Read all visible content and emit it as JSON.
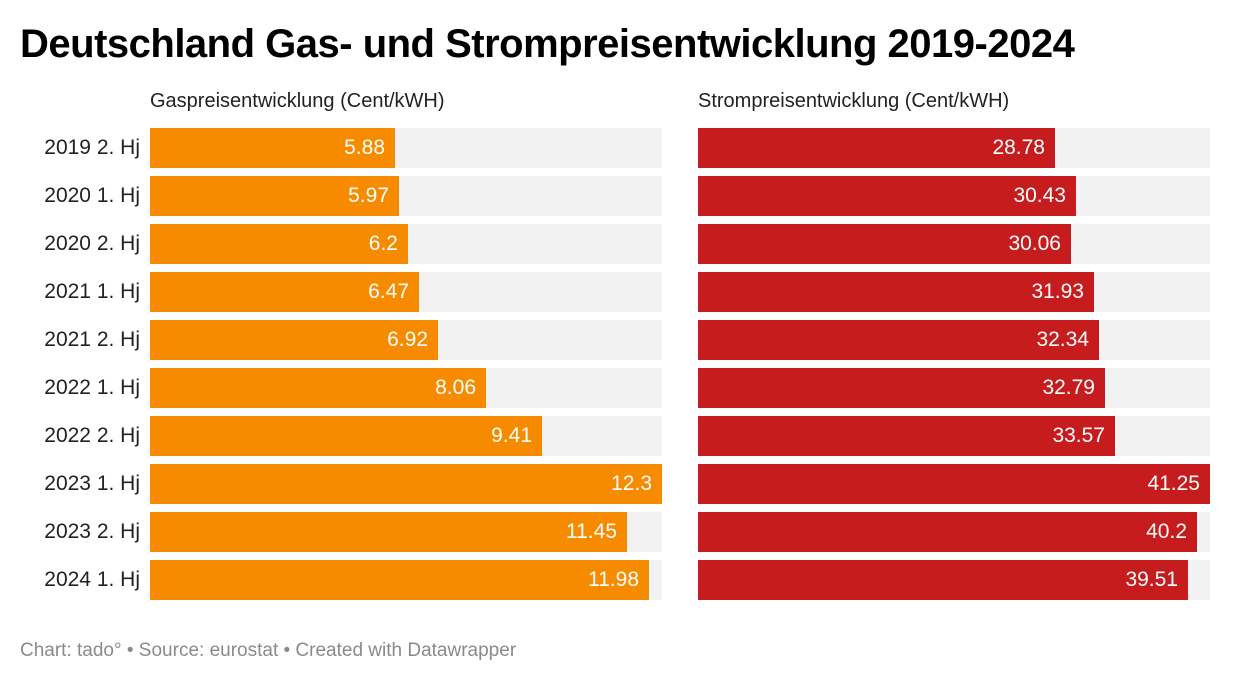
{
  "header": {
    "title": "Deutschland Gas- und Strompreisentwicklung 2019-2024"
  },
  "footer": {
    "text": "Chart: tado° • Source: eurostat • Created with Datawrapper"
  },
  "colors": {
    "gas": "#f68b00",
    "strom": "#c71c1e",
    "track": "#f2f2f2"
  },
  "chart_data": [
    {
      "type": "bar",
      "orientation": "horizontal",
      "title": "Gaspreisentwicklung (Cent/kWH)",
      "categories": [
        "2019 2. Hj",
        "2020 1. Hj",
        "2020 2. Hj",
        "2021 1. Hj",
        "2021 2. Hj",
        "2022 1. Hj",
        "2022 2. Hj",
        "2023 1. Hj",
        "2023 2. Hj",
        "2024 1. Hj"
      ],
      "values": [
        5.88,
        5.97,
        6.2,
        6.47,
        6.92,
        8.06,
        9.41,
        12.3,
        11.45,
        11.98
      ],
      "labels": [
        "5.88",
        "5.97",
        "6.2",
        "6.47",
        "6.92",
        "8.06",
        "9.41",
        "12.3",
        "11.45",
        "11.98"
      ],
      "xlim": [
        0,
        12.3
      ],
      "color": "#f68b00"
    },
    {
      "type": "bar",
      "orientation": "horizontal",
      "title": "Strompreisentwicklung (Cent/kWH)",
      "categories": [
        "2019 2. Hj",
        "2020 1. Hj",
        "2020 2. Hj",
        "2021 1. Hj",
        "2021 2. Hj",
        "2022 1. Hj",
        "2022 2. Hj",
        "2023 1. Hj",
        "2023 2. Hj",
        "2024 1. Hj"
      ],
      "values": [
        28.78,
        30.43,
        30.06,
        31.93,
        32.34,
        32.79,
        33.57,
        41.25,
        40.2,
        39.51
      ],
      "labels": [
        "28.78",
        "30.43",
        "30.06",
        "31.93",
        "32.34",
        "32.79",
        "33.57",
        "41.25",
        "40.2",
        "39.51"
      ],
      "xlim": [
        0,
        41.25
      ],
      "color": "#c71c1e"
    }
  ]
}
